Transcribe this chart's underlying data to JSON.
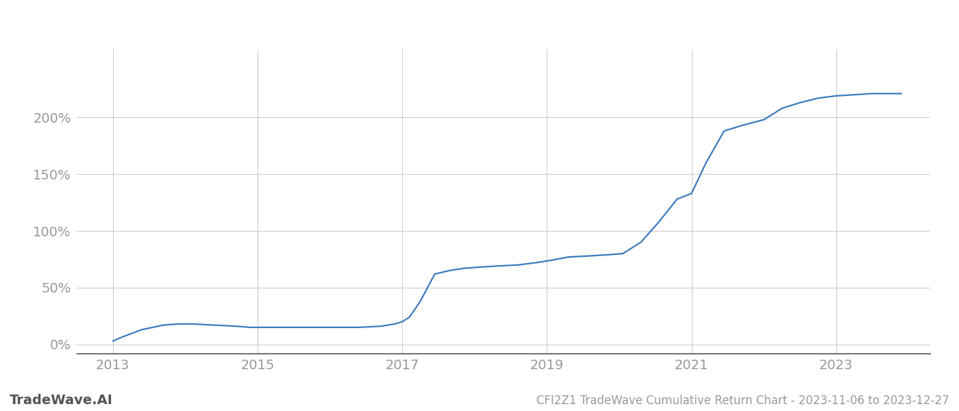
{
  "title": "CFI2Z1 TradeWave Cumulative Return Chart - 2023-11-06 to 2023-12-27",
  "watermark": "TradeWave.AI",
  "line_color": "#3a7abf",
  "background_color": "#ffffff",
  "grid_color": "#cccccc",
  "x_values": [
    2013.0,
    2013.15,
    2013.4,
    2013.7,
    2013.9,
    2014.1,
    2014.4,
    2014.7,
    2014.9,
    2015.1,
    2015.4,
    2015.7,
    2015.9,
    2016.1,
    2016.4,
    2016.7,
    2016.9,
    2017.0,
    2017.1,
    2017.25,
    2017.45,
    2017.65,
    2017.85,
    2018.05,
    2018.3,
    2018.6,
    2018.85,
    2019.05,
    2019.3,
    2019.6,
    2019.85,
    2020.05,
    2020.3,
    2020.55,
    2020.8,
    2021.0,
    2021.2,
    2021.45,
    2021.7,
    2022.0,
    2022.25,
    2022.5,
    2022.75,
    2023.0,
    2023.5,
    2023.9
  ],
  "y_values": [
    3,
    7,
    13,
    17,
    18,
    18,
    17,
    16,
    15,
    15,
    15,
    15,
    15,
    15,
    15,
    16,
    18,
    20,
    24,
    38,
    62,
    65,
    67,
    68,
    69,
    70,
    72,
    74,
    77,
    78,
    79,
    80,
    90,
    108,
    128,
    133,
    160,
    188,
    193,
    198,
    208,
    213,
    217,
    219,
    221,
    221
  ],
  "yticks": [
    0,
    50,
    100,
    150,
    200
  ],
  "ytick_labels": [
    "0%",
    "50%",
    "100%",
    "150%",
    "200%"
  ],
  "xticks": [
    2013,
    2015,
    2017,
    2019,
    2021,
    2023
  ],
  "ylim": [
    -8,
    260
  ],
  "xlim": [
    2012.5,
    2024.3
  ],
  "line_width": 1.6,
  "tick_color": "#999999",
  "tick_fontsize": 14,
  "watermark_fontsize": 14,
  "footer_fontsize": 12,
  "spine_color": "#333333"
}
